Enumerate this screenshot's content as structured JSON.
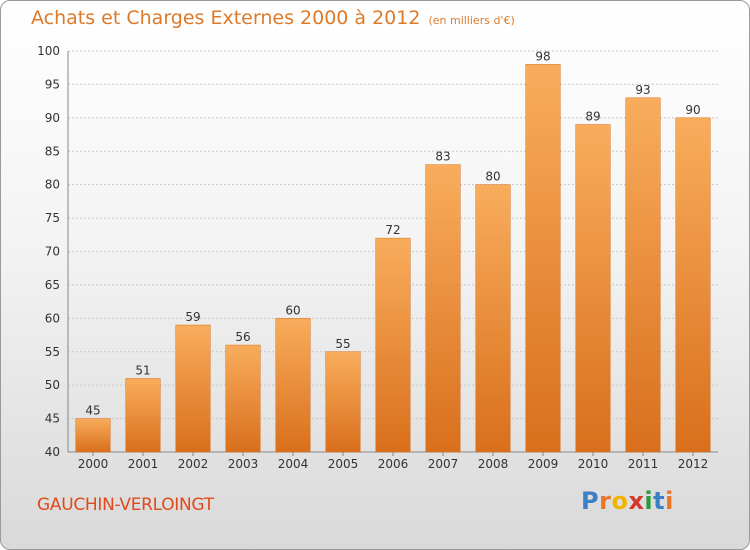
{
  "title": {
    "main": "Achats et Charges Externes 2000 à 2012",
    "unit": "(en milliers d'€)"
  },
  "commune": "GAUCHIN-VERLOINGT",
  "logo": {
    "letters": [
      "P",
      "r",
      "o",
      "x",
      "i",
      "t",
      "i"
    ],
    "colors": [
      "#3b7fc4",
      "#e8772a",
      "#f0b400",
      "#d8362b",
      "#2a9a3a",
      "#3b7fc4",
      "#e8772a"
    ]
  },
  "colors": {
    "bar": "#ee8a35",
    "bar_light": "#f8ad5c",
    "bar_dark": "#d96f1c",
    "grid": "#c8c8c8",
    "label": "#333333",
    "title": "#dd7a2a",
    "commune": "#e04a1c"
  },
  "chart_data": {
    "type": "bar",
    "title": "Achats et Charges Externes 2000 à 2012",
    "subtitle": "(en milliers d'€)",
    "categories": [
      "2000",
      "2001",
      "2002",
      "2003",
      "2004",
      "2005",
      "2006",
      "2007",
      "2008",
      "2009",
      "2010",
      "2011",
      "2012"
    ],
    "values": [
      45,
      51,
      59,
      56,
      60,
      55,
      72,
      83,
      80,
      98,
      89,
      93,
      90
    ],
    "ylim": [
      40,
      100
    ],
    "yticks": [
      40,
      45,
      50,
      55,
      60,
      65,
      70,
      75,
      80,
      85,
      90,
      95,
      100
    ],
    "xlabel": "",
    "ylabel": "",
    "grid": true
  }
}
